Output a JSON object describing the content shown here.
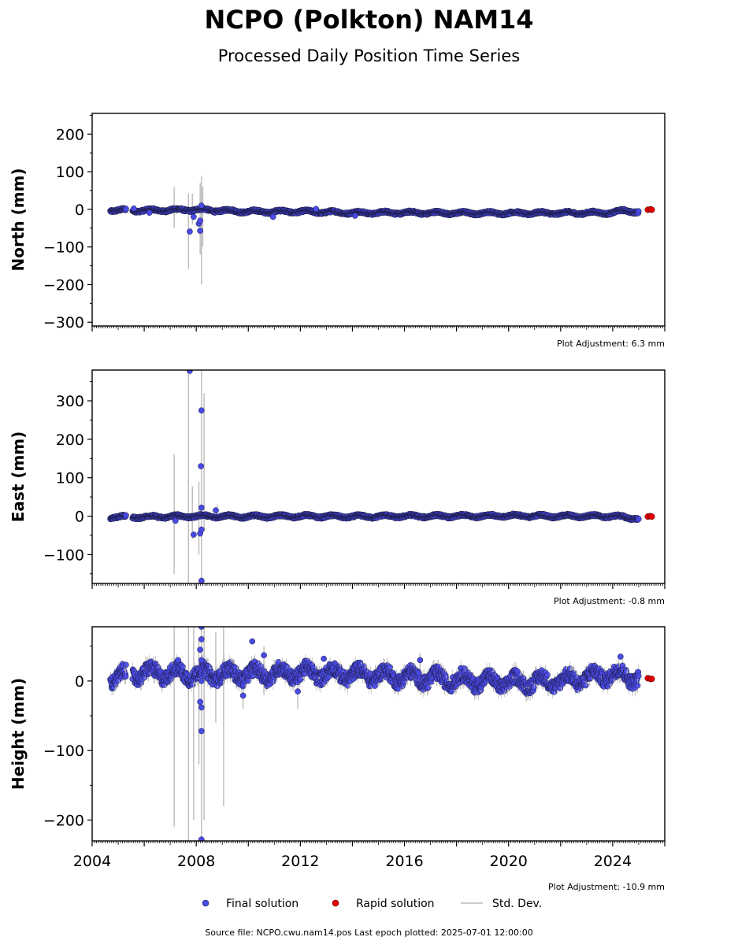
{
  "title": "NCPO (Polkton) NAM14",
  "subtitle": "Processed Daily Position Time Series",
  "legend": {
    "final": "Final solution",
    "rapid": "Rapid solution",
    "std": "Std. Dev."
  },
  "source": "Source file: NCPO.cwu.nam14.pos  Last epoch plotted: 2025-07-01 12:00:00",
  "colors": {
    "final": "#4a4ae6",
    "rapid": "#e60000",
    "std": "#bbbbbb",
    "edge": "#1a1a40"
  },
  "chart_data": [
    {
      "type": "scatter",
      "ylabel": "North (mm)",
      "adjustment": "Plot Adjustment: 6.3 mm",
      "xlim": [
        2004.0,
        2026.0
      ],
      "ylim": [
        -310,
        255
      ],
      "yticks": [
        200,
        100,
        0,
        -100,
        -200,
        -300
      ],
      "ytick_labels": [
        "200",
        "100",
        "0",
        "−100",
        "−200",
        "−300"
      ],
      "baseline": [
        [
          2004.7,
          -2
        ],
        [
          2006.0,
          -3
        ],
        [
          2008.0,
          -1
        ],
        [
          2010.0,
          -6
        ],
        [
          2012.0,
          -6
        ],
        [
          2014.0,
          -9
        ],
        [
          2016.0,
          -9
        ],
        [
          2018.0,
          -10
        ],
        [
          2020.0,
          -10
        ],
        [
          2022.0,
          -10
        ],
        [
          2024.0,
          -9
        ],
        [
          2024.5,
          -3
        ],
        [
          2025.0,
          -7
        ]
      ],
      "amplitude": 3,
      "spread": 3,
      "rapid_points": [
        [
          2025.35,
          -1
        ],
        [
          2025.45,
          0
        ],
        [
          2025.5,
          -1
        ]
      ],
      "outliers": [
        [
          2007.75,
          -59
        ],
        [
          2007.9,
          -20
        ],
        [
          2008.15,
          -57
        ],
        [
          2008.1,
          -38
        ],
        [
          2008.15,
          -30
        ],
        [
          2008.2,
          10
        ],
        [
          2005.6,
          2
        ],
        [
          2006.2,
          -9
        ],
        [
          2010.95,
          -20
        ],
        [
          2014.1,
          -17
        ],
        [
          2012.6,
          1
        ]
      ],
      "std_bars": [
        [
          2007.15,
          -50,
          60
        ],
        [
          2007.7,
          -158,
          42
        ],
        [
          2007.85,
          -40,
          42
        ],
        [
          2008.2,
          -200,
          88
        ],
        [
          2008.15,
          -120,
          70
        ],
        [
          2008.25,
          -100,
          60
        ]
      ]
    },
    {
      "type": "scatter",
      "ylabel": "East (mm)",
      "adjustment": "Plot Adjustment: -0.8 mm",
      "xlim": [
        2004.0,
        2026.0
      ],
      "ylim": [
        -175,
        380
      ],
      "yticks": [
        300,
        200,
        100,
        0,
        -100
      ],
      "ytick_labels": [
        "300",
        "200",
        "100",
        "0",
        "−100"
      ],
      "baseline": [
        [
          2004.7,
          -2
        ],
        [
          2006.0,
          -2
        ],
        [
          2008.0,
          0
        ],
        [
          2010.0,
          -1
        ],
        [
          2012.0,
          0
        ],
        [
          2014.0,
          -1
        ],
        [
          2016.0,
          0
        ],
        [
          2018.0,
          0
        ],
        [
          2020.0,
          1
        ],
        [
          2022.0,
          0
        ],
        [
          2024.0,
          0
        ],
        [
          2025.0,
          -6
        ]
      ],
      "amplitude": 3,
      "spread": 3,
      "rapid_points": [
        [
          2025.35,
          -1
        ],
        [
          2025.45,
          0
        ],
        [
          2025.5,
          -1
        ]
      ],
      "outliers": [
        [
          2007.75,
          378
        ],
        [
          2008.2,
          275
        ],
        [
          2008.18,
          130
        ],
        [
          2008.2,
          22
        ],
        [
          2007.9,
          -48
        ],
        [
          2008.15,
          -45
        ],
        [
          2008.2,
          -35
        ],
        [
          2008.2,
          -168
        ],
        [
          2008.75,
          15
        ],
        [
          2007.2,
          -12
        ]
      ],
      "std_bars": [
        [
          2007.15,
          -150,
          162
        ],
        [
          2007.7,
          -175,
          380
        ],
        [
          2007.85,
          -60,
          78
        ],
        [
          2008.2,
          -175,
          380
        ],
        [
          2008.3,
          -40,
          320
        ],
        [
          2008.1,
          -100,
          90
        ],
        [
          2008.8,
          -5,
          30
        ]
      ]
    },
    {
      "type": "scatter",
      "ylabel": "Height (mm)",
      "adjustment": "Plot Adjustment: -10.9 mm",
      "xlim": [
        2004.0,
        2026.0
      ],
      "ylim": [
        -230,
        78
      ],
      "yticks": [
        0,
        -100,
        -200
      ],
      "ytick_labels": [
        "0",
        "−100",
        "−200"
      ],
      "baseline": [
        [
          2004.7,
          5
        ],
        [
          2006.0,
          12
        ],
        [
          2008.0,
          10
        ],
        [
          2010.0,
          10
        ],
        [
          2012.0,
          12
        ],
        [
          2014.0,
          10
        ],
        [
          2016.0,
          6
        ],
        [
          2018.0,
          2
        ],
        [
          2020.0,
          -2
        ],
        [
          2022.0,
          0
        ],
        [
          2024.0,
          10
        ],
        [
          2025.0,
          5
        ]
      ],
      "amplitude": 8,
      "spread": 10,
      "rapid_points": [
        [
          2025.35,
          4
        ],
        [
          2025.45,
          3
        ],
        [
          2025.5,
          3
        ]
      ],
      "outliers": [
        [
          2008.2,
          78
        ],
        [
          2008.2,
          60
        ],
        [
          2008.15,
          45
        ],
        [
          2008.2,
          30
        ],
        [
          2008.2,
          0
        ],
        [
          2008.15,
          -30
        ],
        [
          2008.2,
          -38
        ],
        [
          2008.2,
          -72
        ],
        [
          2008.2,
          -228
        ],
        [
          2010.15,
          57
        ],
        [
          2009.8,
          -21
        ],
        [
          2010.6,
          37
        ],
        [
          2011.9,
          -15
        ],
        [
          2007.3,
          30
        ],
        [
          2024.3,
          35
        ],
        [
          2012.9,
          32
        ],
        [
          2016.6,
          30
        ]
      ],
      "std_bars": [
        [
          2007.15,
          -210,
          78
        ],
        [
          2007.7,
          -230,
          78
        ],
        [
          2007.9,
          -200,
          78
        ],
        [
          2008.2,
          -230,
          78
        ],
        [
          2008.3,
          -200,
          78
        ],
        [
          2008.75,
          -60,
          70
        ],
        [
          2009.05,
          -180,
          78
        ],
        [
          2008.1,
          -120,
          60
        ],
        [
          2009.8,
          -40,
          10
        ],
        [
          2011.9,
          -40,
          10
        ],
        [
          2010.6,
          -20,
          50
        ],
        [
          2016.6,
          -10,
          40
        ]
      ]
    }
  ],
  "x_ticks": [
    2004,
    2008,
    2012,
    2016,
    2020,
    2024
  ]
}
